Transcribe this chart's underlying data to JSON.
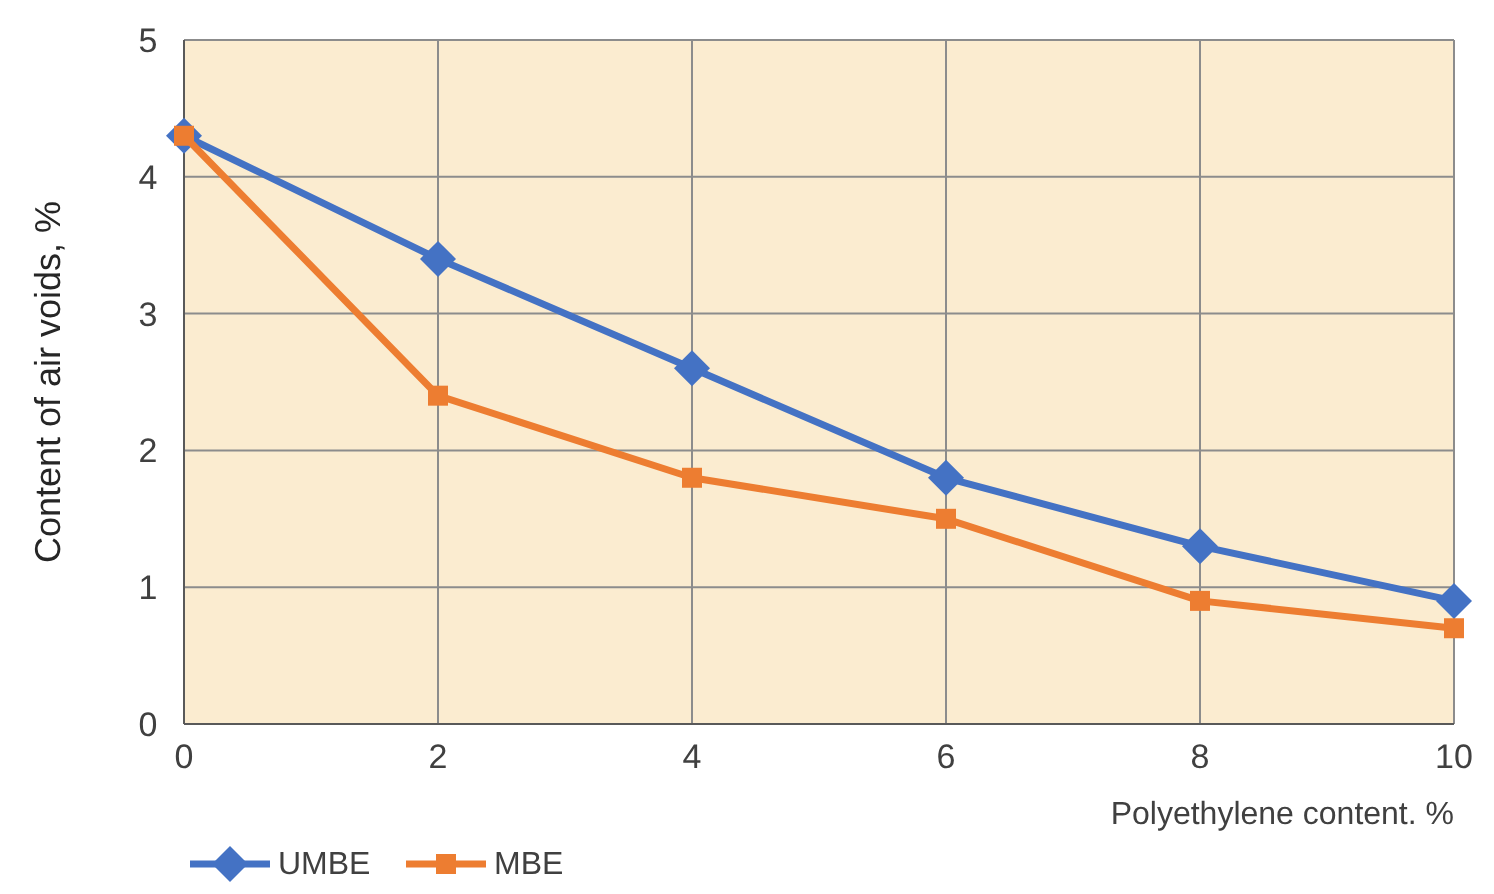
{
  "chart_data": {
    "type": "line",
    "xlabel": "Polyethylene content. %",
    "ylabel": "Content of air voids, %",
    "x": [
      0,
      2,
      4,
      6,
      8,
      10
    ],
    "xlim": [
      0,
      10
    ],
    "xticks": [
      0,
      2,
      4,
      6,
      8,
      10
    ],
    "ylim": [
      0,
      5
    ],
    "yticks": [
      0,
      1,
      2,
      3,
      4,
      5
    ],
    "grid": true,
    "legend": "bottom left",
    "line_style": "solid",
    "series": [
      {
        "name": "UMBE",
        "color": "#4472c4",
        "marker": "diamond",
        "values": [
          4.3,
          3.4,
          2.6,
          1.8,
          1.3,
          0.9
        ]
      },
      {
        "name": "MBE",
        "color": "#ed7d31",
        "marker": "square",
        "values": [
          4.3,
          2.4,
          1.8,
          1.5,
          0.9,
          0.7
        ]
      }
    ]
  }
}
